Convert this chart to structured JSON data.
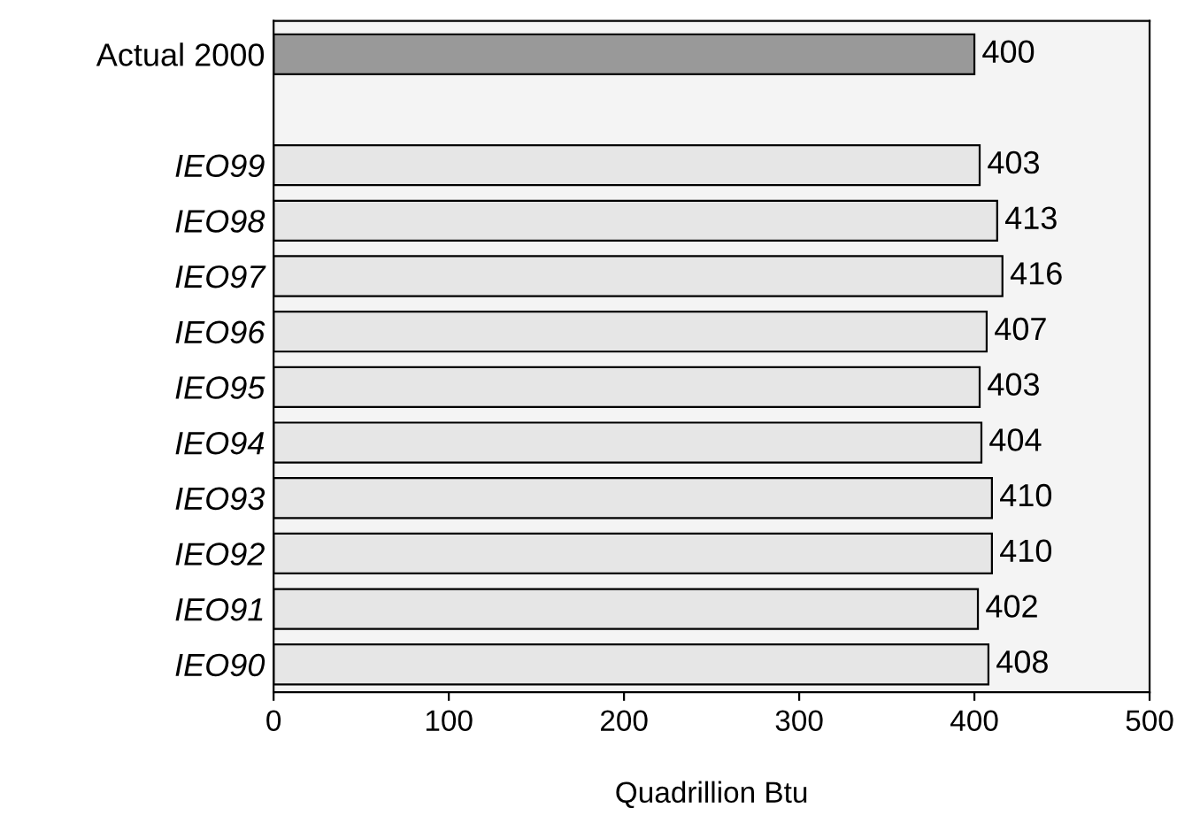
{
  "chart_data": {
    "type": "bar",
    "orientation": "horizontal",
    "xlabel": "Quadrillion Btu",
    "categories": [
      "Actual 2000",
      null,
      "IEO99",
      "IEO98",
      "IEO97",
      "IEO96",
      "IEO95",
      "IEO94",
      "IEO93",
      "IEO92",
      "IEO91",
      "IEO90"
    ],
    "values": [
      400,
      null,
      403,
      413,
      416,
      407,
      403,
      404,
      410,
      410,
      402,
      408
    ],
    "colors": [
      "#999999",
      null,
      "#e6e6e6",
      "#e6e6e6",
      "#e6e6e6",
      "#e6e6e6",
      "#e6e6e6",
      "#e6e6e6",
      "#e6e6e6",
      "#e6e6e6",
      "#e6e6e6",
      "#e6e6e6"
    ],
    "xlim": [
      0,
      500
    ],
    "xticks": [
      0,
      100,
      200,
      300,
      400,
      500
    ],
    "data_labels": true,
    "grid": false,
    "legend": false
  }
}
